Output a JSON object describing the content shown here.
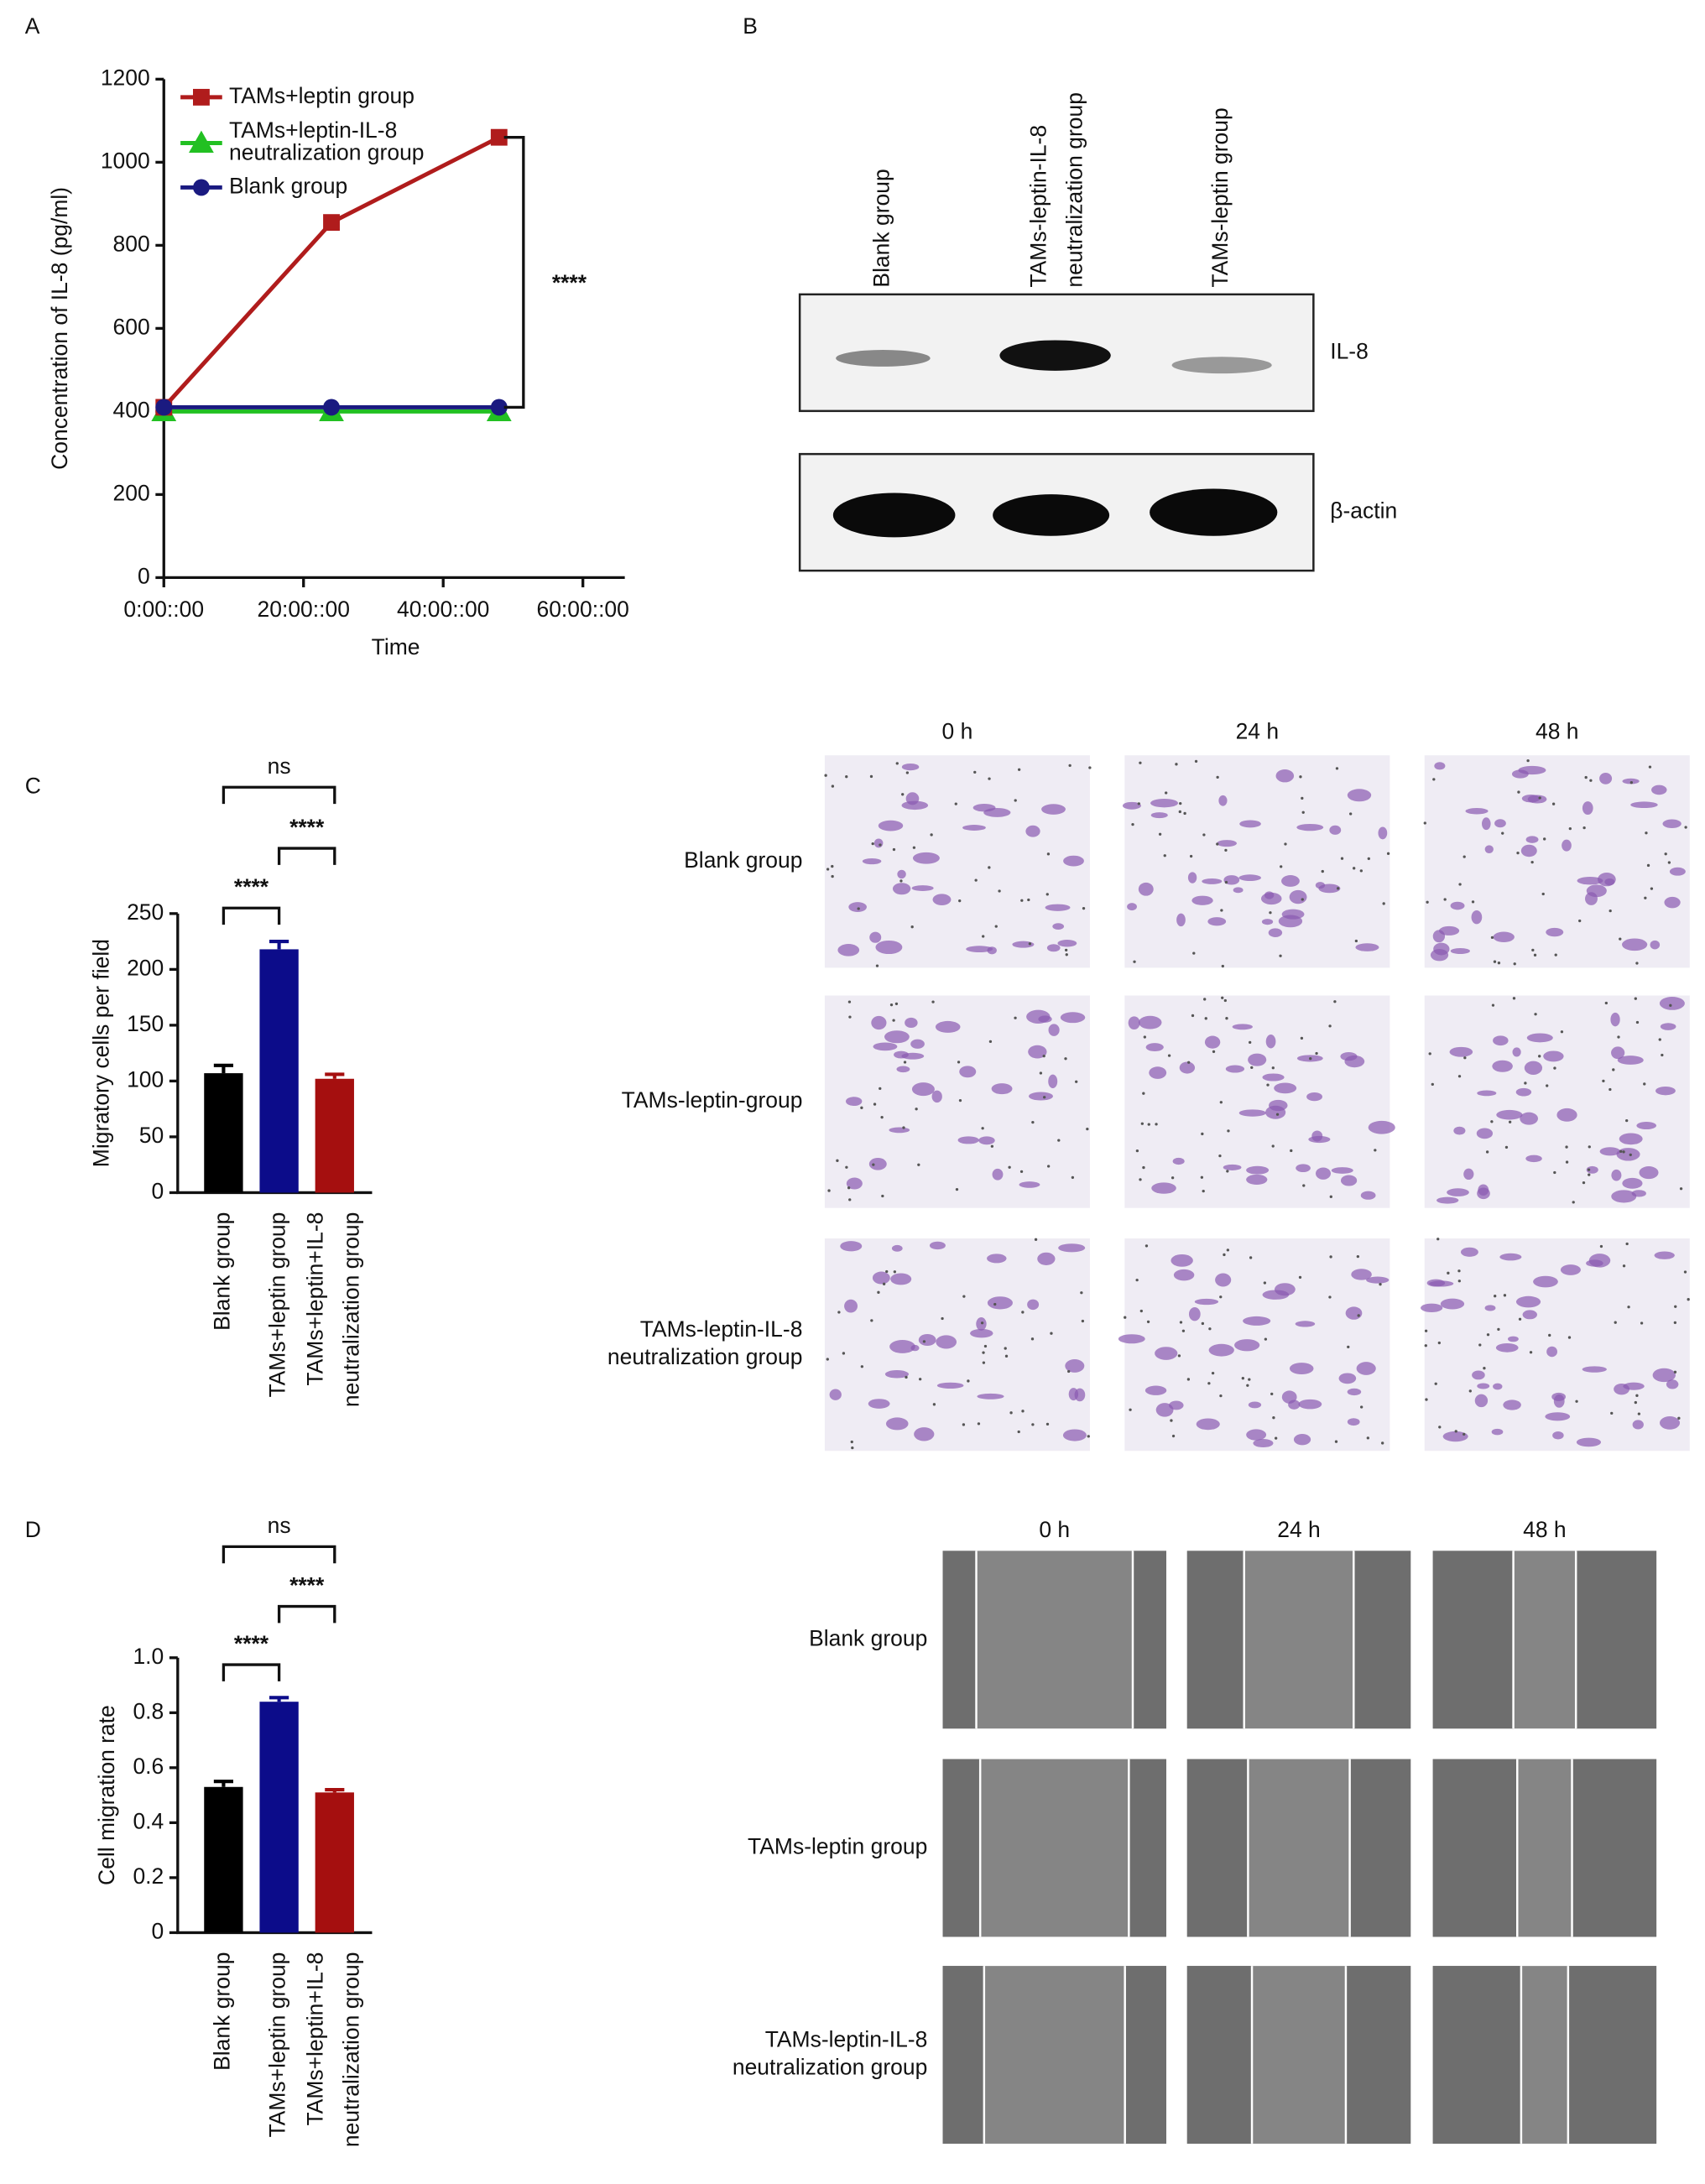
{
  "panel_labels": [
    "A",
    "B",
    "C",
    "D"
  ],
  "chart_data": [
    {
      "type": "line",
      "ylabel": "Concentration of IL-8 (pg/ml)",
      "xlabel": "Time",
      "x": [
        0,
        24,
        48
      ],
      "xlim": [
        0,
        66
      ],
      "xticks": [
        {
          "value": 0,
          "label": "0:00::00"
        },
        {
          "value": 20,
          "label": "20:00::00"
        },
        {
          "value": 40,
          "label": "40:00::00"
        },
        {
          "value": 60,
          "label": "60:00::00"
        }
      ],
      "ylim": [
        0,
        1200
      ],
      "yticks": [
        0,
        200,
        400,
        600,
        800,
        1000,
        1200
      ],
      "series": [
        {
          "name": [
            "TAMs+leptin group"
          ],
          "color": "#b01c1c",
          "marker": "square",
          "values": [
            410,
            855,
            1060
          ]
        },
        {
          "name": [
            "TAMs+leptin-IL-8",
            "neutralization group"
          ],
          "color": "#22c022",
          "marker": "triangle",
          "values": [
            400,
            400,
            400
          ]
        },
        {
          "name": [
            "Blank group"
          ],
          "color": "#1a1a80",
          "marker": "circle",
          "values": [
            410,
            410,
            410
          ]
        }
      ],
      "annotations": [
        "****"
      ]
    },
    {
      "type": "bar",
      "ylabel": "Migratory cells per field",
      "categories": [
        [
          "Blank group"
        ],
        [
          "TAMs+leptin group"
        ],
        [
          "TAMs+leptin+IL-8",
          "neutralization group"
        ]
      ],
      "values": [
        107,
        218,
        102
      ],
      "errors": [
        7,
        7,
        4
      ],
      "colors": [
        "#000000",
        "#0c0c8a",
        "#a50f0f"
      ],
      "ylim": [
        0,
        250
      ],
      "yticks": [
        0,
        50,
        100,
        150,
        200,
        250
      ],
      "annotations": [
        "ns",
        "****",
        "****"
      ]
    },
    {
      "type": "bar",
      "ylabel": "Cell migration rate",
      "categories": [
        [
          "Blank group"
        ],
        [
          "TAMs+leptin group"
        ],
        [
          "TAMs+leptin+IL-8",
          "neutralization group"
        ]
      ],
      "values": [
        0.53,
        0.84,
        0.51
      ],
      "errors": [
        0.02,
        0.015,
        0.01
      ],
      "colors": [
        "#000000",
        "#0c0c8a",
        "#a50f0f"
      ],
      "ylim": [
        0,
        1
      ],
      "yticks": [
        0,
        0.2,
        0.4,
        0.6,
        0.8,
        {
          "value": 1,
          "label": "1.0"
        }
      ],
      "annotations": [
        "ns",
        "****",
        "****"
      ]
    }
  ],
  "western_blot": {
    "lanes": [
      [
        "Blank group"
      ],
      [
        "TAMs-leptin-IL-8",
        "neutralization group"
      ],
      [
        "TAMs-leptin group"
      ]
    ],
    "bands": [
      "IL-8",
      "β-actin"
    ]
  },
  "transwell": {
    "columns": [
      "0 h",
      "24 h",
      "48 h"
    ],
    "rows": [
      [
        "Blank group"
      ],
      [
        "TAMs-leptin-group"
      ],
      [
        "TAMs-leptin-IL-8",
        "neutralization group"
      ]
    ]
  },
  "wound_healing": {
    "columns": [
      "0 h",
      "24 h",
      "48 h"
    ],
    "rows": [
      [
        "Blank group"
      ],
      [
        "TAMs-leptin group"
      ],
      [
        "TAMs-leptin-IL-8",
        "neutralization group"
      ]
    ]
  }
}
